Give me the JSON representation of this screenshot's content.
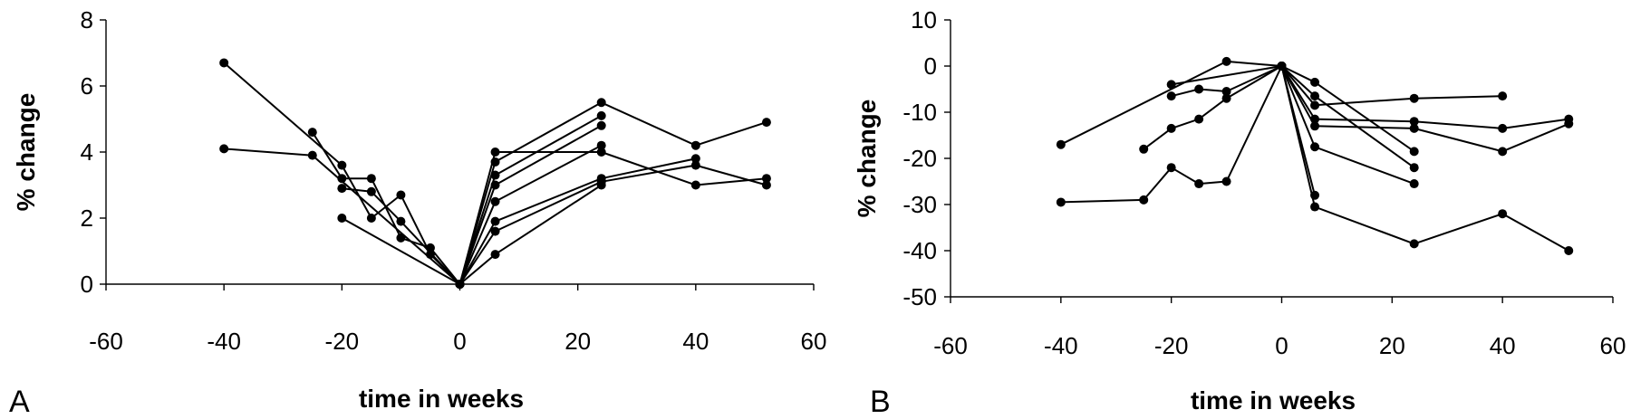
{
  "chart_data": [
    {
      "type": "line",
      "panel_label": "A",
      "xlabel": "time in weeks",
      "ylabel": "% change",
      "xlim": [
        -60,
        60
      ],
      "ylim": [
        0,
        8
      ],
      "xticks": [
        -60,
        -40,
        -20,
        0,
        20,
        40,
        60
      ],
      "yticks": [
        0,
        2,
        4,
        6,
        8
      ],
      "grid": false,
      "series": [
        {
          "x": [
            -40,
            -25,
            0,
            6,
            24,
            40,
            52
          ],
          "y": [
            4.1,
            3.9,
            0,
            4.0,
            4.0,
            3.0,
            3.2
          ]
        },
        {
          "x": [
            -40,
            -20,
            -15,
            -10,
            -5,
            0
          ],
          "y": [
            6.7,
            3.6,
            2.0,
            2.7,
            0.9,
            0
          ]
        },
        {
          "x": [
            -25,
            -20,
            -15,
            -10,
            -5,
            0
          ],
          "y": [
            4.6,
            3.2,
            3.2,
            1.4,
            1.1,
            0
          ]
        },
        {
          "x": [
            -20,
            -15,
            -10,
            0
          ],
          "y": [
            2.9,
            2.8,
            1.9,
            0
          ]
        },
        {
          "x": [
            -20,
            0
          ],
          "y": [
            2.0,
            0
          ]
        },
        {
          "x": [
            0,
            6,
            24,
            40,
            52
          ],
          "y": [
            0,
            3.7,
            5.5,
            4.2,
            4.9
          ]
        },
        {
          "x": [
            0,
            6,
            24
          ],
          "y": [
            0,
            3.3,
            5.1
          ]
        },
        {
          "x": [
            0,
            6,
            24
          ],
          "y": [
            0,
            3.0,
            4.8
          ]
        },
        {
          "x": [
            0,
            6,
            24
          ],
          "y": [
            0,
            2.5,
            4.2
          ]
        },
        {
          "x": [
            0,
            6,
            24,
            40
          ],
          "y": [
            0,
            1.9,
            3.2,
            3.8
          ]
        },
        {
          "x": [
            0,
            6,
            24,
            40,
            52
          ],
          "y": [
            0,
            1.6,
            3.1,
            3.6,
            3.0
          ]
        },
        {
          "x": [
            0,
            6,
            24
          ],
          "y": [
            0,
            0.9,
            3.0
          ]
        }
      ]
    },
    {
      "type": "line",
      "panel_label": "B",
      "xlabel": "time in weeks",
      "ylabel": "% change",
      "xlim": [
        -60,
        60
      ],
      "ylim": [
        -50,
        10
      ],
      "xticks": [
        -60,
        -40,
        -20,
        0,
        20,
        40,
        60
      ],
      "yticks": [
        -50,
        -40,
        -30,
        -20,
        -10,
        0,
        10
      ],
      "grid": false,
      "series": [
        {
          "x": [
            -40,
            -10,
            0
          ],
          "y": [
            -17,
            1,
            0
          ]
        },
        {
          "x": [
            -40,
            -25,
            -20,
            -15,
            -10,
            0
          ],
          "y": [
            -29.5,
            -29,
            -22,
            -25.5,
            -25,
            0
          ]
        },
        {
          "x": [
            -25,
            -20,
            -15,
            -10,
            0
          ],
          "y": [
            -18,
            -13.5,
            -11.5,
            -7,
            0
          ]
        },
        {
          "x": [
            -20,
            -15,
            -10,
            0
          ],
          "y": [
            -6.5,
            -5,
            -5.5,
            0
          ]
        },
        {
          "x": [
            -20,
            0
          ],
          "y": [
            -4,
            0
          ]
        },
        {
          "x": [
            0,
            6,
            24,
            40
          ],
          "y": [
            0,
            -8.5,
            -7,
            -6.5
          ]
        },
        {
          "x": [
            0,
            6,
            24,
            40,
            52
          ],
          "y": [
            0,
            -11.5,
            -12,
            -13.5,
            -11.5
          ]
        },
        {
          "x": [
            0,
            6,
            24,
            40,
            52
          ],
          "y": [
            0,
            -13,
            -13.5,
            -18.5,
            -12.5
          ]
        },
        {
          "x": [
            0,
            6,
            24
          ],
          "y": [
            0,
            -3.5,
            -18.5
          ]
        },
        {
          "x": [
            0,
            6,
            24
          ],
          "y": [
            0,
            -6.5,
            -22
          ]
        },
        {
          "x": [
            0,
            6,
            24
          ],
          "y": [
            0,
            -17.5,
            -25.5
          ]
        },
        {
          "x": [
            0,
            6
          ],
          "y": [
            0,
            -28
          ]
        },
        {
          "x": [
            0,
            6,
            24,
            40,
            52
          ],
          "y": [
            0,
            -30.5,
            -38.5,
            -32,
            -40
          ]
        }
      ]
    }
  ]
}
